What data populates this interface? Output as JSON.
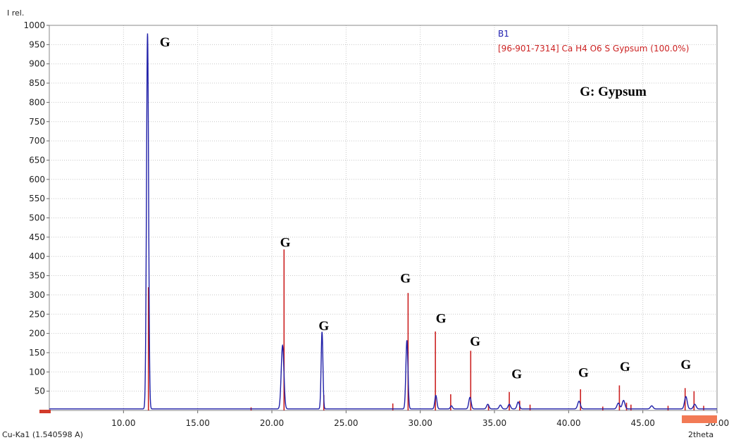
{
  "chart_data": {
    "type": "line",
    "ylabel": "I rel.",
    "xlabel": "2theta",
    "xlim": [
      5,
      50
    ],
    "ylim": [
      0,
      1000
    ],
    "x_ticks": [
      10,
      15,
      20,
      25,
      30,
      35,
      40,
      45,
      50
    ],
    "x_tick_labels": [
      "10.00",
      "15.00",
      "20.00",
      "25.00",
      "30.00",
      "35.00",
      "40.00",
      "45.00",
      "50.00"
    ],
    "y_ticks": [
      50,
      100,
      150,
      200,
      250,
      300,
      350,
      400,
      450,
      500,
      550,
      600,
      650,
      700,
      750,
      800,
      850,
      900,
      950,
      1000
    ],
    "y_tick_labels": [
      "50",
      "100",
      "150",
      "200",
      "250",
      "300",
      "350",
      "400",
      "450",
      "500",
      "550",
      "600",
      "650",
      "700",
      "750",
      "800",
      "850",
      "900",
      "950",
      "1000"
    ],
    "grid": true,
    "legend_position": "top-right",
    "radiation_label": "Cu-Ka1 (1.540598 A)",
    "series": [
      {
        "name": "B1",
        "kind": "measured-pattern",
        "color": "#1f1fa8",
        "baseline": 4,
        "peaks": [
          {
            "x": 11.62,
            "y": 975,
            "w": 0.07
          },
          {
            "x": 20.72,
            "y": 165,
            "w": 0.09
          },
          {
            "x": 23.38,
            "y": 200,
            "w": 0.06
          },
          {
            "x": 29.1,
            "y": 178,
            "w": 0.07
          },
          {
            "x": 31.05,
            "y": 35,
            "w": 0.07
          },
          {
            "x": 32.1,
            "y": 8,
            "w": 0.07
          },
          {
            "x": 33.35,
            "y": 30,
            "w": 0.08
          },
          {
            "x": 34.55,
            "y": 12,
            "w": 0.08
          },
          {
            "x": 35.4,
            "y": 10,
            "w": 0.08
          },
          {
            "x": 36.0,
            "y": 12,
            "w": 0.08
          },
          {
            "x": 36.6,
            "y": 18,
            "w": 0.08
          },
          {
            "x": 40.7,
            "y": 20,
            "w": 0.09
          },
          {
            "x": 43.35,
            "y": 15,
            "w": 0.09
          },
          {
            "x": 43.7,
            "y": 22,
            "w": 0.09
          },
          {
            "x": 45.6,
            "y": 8,
            "w": 0.09
          },
          {
            "x": 47.9,
            "y": 32,
            "w": 0.09
          },
          {
            "x": 48.5,
            "y": 12,
            "w": 0.09
          }
        ]
      },
      {
        "name": "[96-901-7314] Ca H4 O6 S Gypsum (100.0%)",
        "kind": "reference-sticks",
        "color": "#cc2222",
        "sticks": [
          {
            "x": 11.68,
            "y": 320
          },
          {
            "x": 18.6,
            "y": 8
          },
          {
            "x": 20.82,
            "y": 418
          },
          {
            "x": 23.5,
            "y": 40
          },
          {
            "x": 28.15,
            "y": 18
          },
          {
            "x": 29.18,
            "y": 305
          },
          {
            "x": 31.02,
            "y": 205
          },
          {
            "x": 32.05,
            "y": 42
          },
          {
            "x": 33.4,
            "y": 155
          },
          {
            "x": 34.6,
            "y": 15
          },
          {
            "x": 36.0,
            "y": 48
          },
          {
            "x": 36.7,
            "y": 25
          },
          {
            "x": 37.4,
            "y": 15
          },
          {
            "x": 40.8,
            "y": 55
          },
          {
            "x": 42.3,
            "y": 10
          },
          {
            "x": 43.42,
            "y": 65
          },
          {
            "x": 43.9,
            "y": 20
          },
          {
            "x": 44.2,
            "y": 15
          },
          {
            "x": 46.7,
            "y": 12
          },
          {
            "x": 47.85,
            "y": 58
          },
          {
            "x": 48.45,
            "y": 50
          },
          {
            "x": 49.1,
            "y": 12
          }
        ]
      }
    ],
    "annotations": [
      {
        "text": "G",
        "x": 12.8,
        "y": 945
      },
      {
        "text": "G",
        "x": 20.9,
        "y": 425
      },
      {
        "text": "G",
        "x": 23.5,
        "y": 208
      },
      {
        "text": "G",
        "x": 29.0,
        "y": 332
      },
      {
        "text": "G",
        "x": 31.4,
        "y": 228
      },
      {
        "text": "G",
        "x": 33.7,
        "y": 168
      },
      {
        "text": "G",
        "x": 36.5,
        "y": 83
      },
      {
        "text": "G",
        "x": 41.0,
        "y": 87
      },
      {
        "text": "G",
        "x": 43.8,
        "y": 102
      },
      {
        "text": "G",
        "x": 47.9,
        "y": 108
      },
      {
        "text": "G: Gypsum",
        "x": 43.0,
        "y": 817,
        "anchor": "middle",
        "size": "large"
      }
    ]
  }
}
